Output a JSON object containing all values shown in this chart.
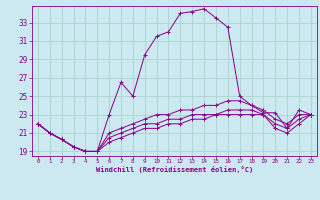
{
  "xlabel": "Windchill (Refroidissement éolien,°C)",
  "bg_color": "#cce8f0",
  "grid_color": "#aad4cc",
  "line_color": "#880088",
  "xlim": [
    -0.5,
    23.5
  ],
  "ylim": [
    18.5,
    34.8
  ],
  "yticks": [
    19,
    21,
    23,
    25,
    27,
    29,
    31,
    33
  ],
  "xticks": [
    0,
    1,
    2,
    3,
    4,
    5,
    6,
    7,
    8,
    9,
    10,
    11,
    12,
    13,
    14,
    15,
    16,
    17,
    18,
    19,
    20,
    21,
    22,
    23
  ],
  "series": {
    "line1": [
      22.0,
      21.0,
      20.3,
      19.5,
      19.0,
      19.0,
      23.0,
      26.5,
      25.0,
      29.5,
      31.5,
      32.0,
      34.0,
      34.2,
      34.5,
      33.5,
      32.5,
      25.0,
      24.0,
      23.2,
      23.2,
      21.5,
      23.5,
      23.0
    ],
    "line2": [
      22.0,
      21.0,
      20.3,
      19.5,
      19.0,
      19.0,
      21.0,
      21.5,
      22.0,
      22.5,
      23.0,
      23.0,
      23.5,
      23.5,
      24.0,
      24.0,
      24.5,
      24.5,
      24.0,
      23.5,
      22.5,
      22.0,
      23.0,
      23.0
    ],
    "line3": [
      22.0,
      21.0,
      20.3,
      19.5,
      19.0,
      19.0,
      20.5,
      21.0,
      21.5,
      22.0,
      22.0,
      22.5,
      22.5,
      23.0,
      23.0,
      23.0,
      23.5,
      23.5,
      23.5,
      23.0,
      22.0,
      21.5,
      22.5,
      23.0
    ],
    "line4": [
      22.0,
      21.0,
      20.3,
      19.5,
      19.0,
      19.0,
      20.0,
      20.5,
      21.0,
      21.5,
      21.5,
      22.0,
      22.0,
      22.5,
      22.5,
      23.0,
      23.0,
      23.0,
      23.0,
      23.0,
      21.5,
      21.0,
      22.0,
      23.0
    ]
  }
}
